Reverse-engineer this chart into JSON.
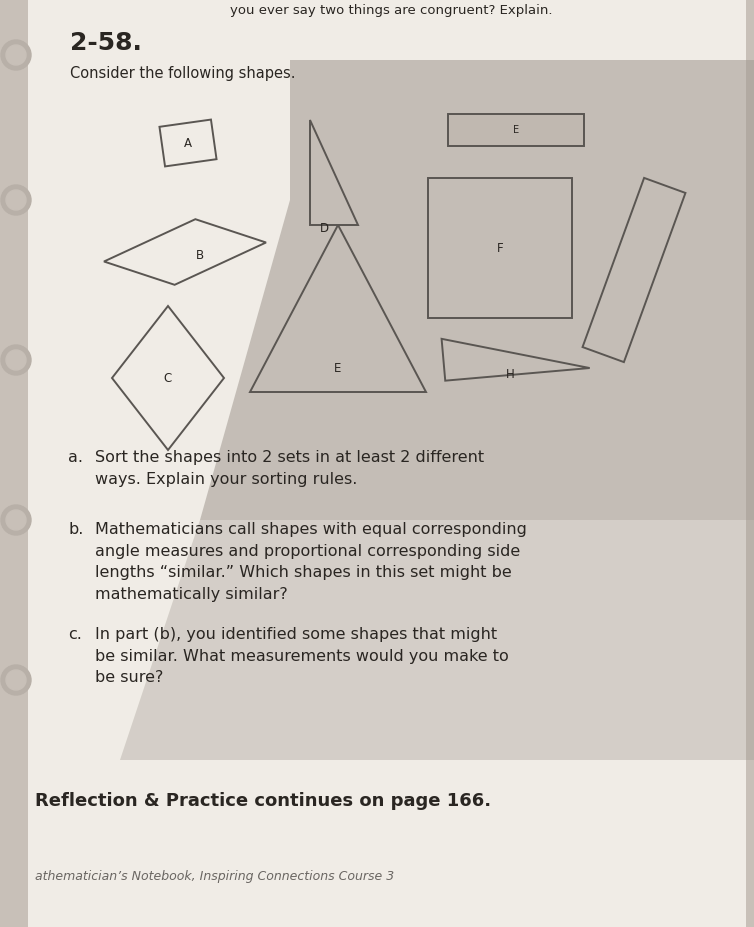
{
  "bg_color": "#c8c0b8",
  "page_color": "#f0ece6",
  "shadow_color": "#a09890",
  "title": "2-58.",
  "subtitle": "Consider the following shapes.",
  "header_text": "you ever say two things are congruent? Explain.",
  "part_a_label": "a.",
  "part_a_text": "Sort the shapes into 2 sets in at least 2 different\nways. Explain your sorting rules.",
  "part_b_label": "b.",
  "part_b_text": "Mathematicians call shapes with equal corresponding\nangle measures and proportional corresponding side\nlengths “similar.” Which shapes in this set might be\nmathematically similar?",
  "part_c_label": "c.",
  "part_c_text": "In part (b), you identified some shapes that might\nbe similar. What measurements would you make to\nbe sure?",
  "footer1": "Reflection & Practice continues on page 166.",
  "footer2": "athematician’s Notebook, Inspiring Connections Course 3",
  "text_color": "#2a2622",
  "shape_edge": "#5a5652",
  "lw": 1.4
}
